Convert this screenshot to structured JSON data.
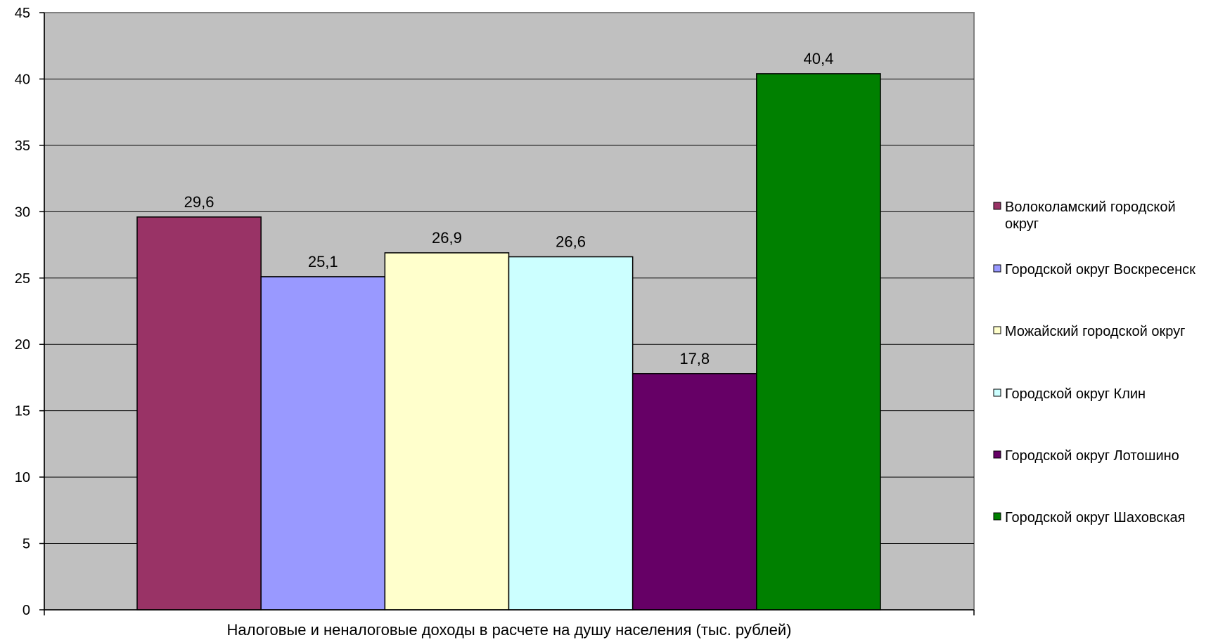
{
  "chart_data": {
    "type": "bar",
    "title": "",
    "xlabel": "Налоговые и неналоговые доходы в расчете на душу населения (тыс. рублей)",
    "ylabel": "",
    "ylim": [
      0,
      45
    ],
    "y_ticks": [
      0,
      5,
      10,
      15,
      20,
      25,
      30,
      35,
      40,
      45
    ],
    "grid": true,
    "legend_position": "right",
    "plot_background": "#C0C0C0",
    "series": [
      {
        "name": "Волоколамский городской округ",
        "value": 29.6,
        "label": "29,6",
        "color": "#993366"
      },
      {
        "name": "Городской округ Воскресенск",
        "value": 25.1,
        "label": "25,1",
        "color": "#9999FF"
      },
      {
        "name": "Можайский городской округ",
        "value": 26.9,
        "label": "26,9",
        "color": "#FFFFCC"
      },
      {
        "name": "Городской округ Клин",
        "value": 26.6,
        "label": "26,6",
        "color": "#CCFFFF"
      },
      {
        "name": "Городской округ Лотошино",
        "value": 17.8,
        "label": "17,8",
        "color": "#660066"
      },
      {
        "name": "Городской округ Шаховская",
        "value": 40.4,
        "label": "40,4",
        "color": "#008000"
      }
    ]
  }
}
